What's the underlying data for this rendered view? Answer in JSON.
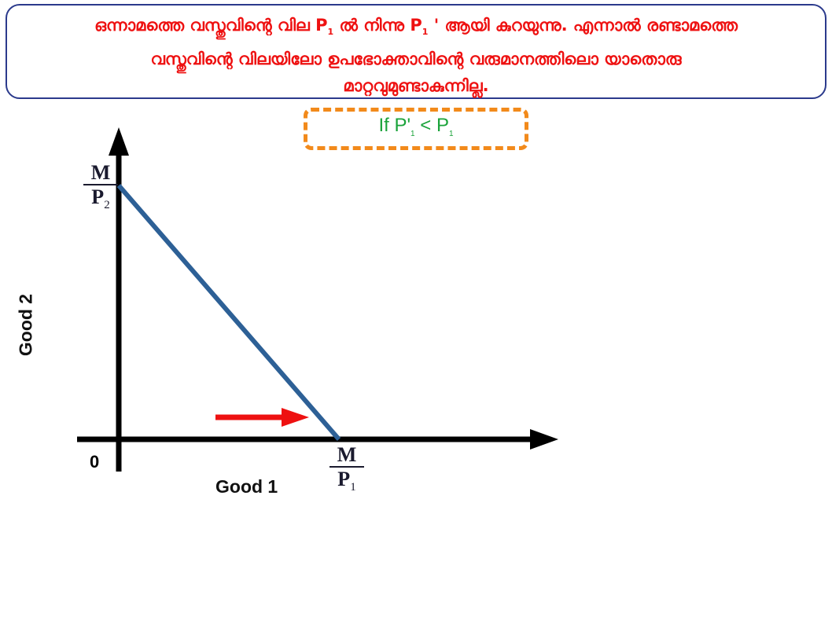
{
  "header": {
    "line1_a": "ഒന്നാമത്തെ വസ്തുവിന്റെ വില P",
    "line1_sub": "1",
    "line1_b": " ൽ നിന്നു P",
    "line1_sub2": "1",
    "line1_c": " ' ആയി കുറയുന്നു. എന്നാൽ രണ്ടാമത്തെ",
    "line2": "വസ്തുവിന്റെ വിലയിലോ ഉപഭോക്താവിന്റെ വരുമാനത്തിലൊ യാതൊരു",
    "line3": "മാറ്റവുമുണ്ടാകുന്നില്ല."
  },
  "condition": {
    "prefix": "If P'",
    "sub1": "1",
    "mid": " < P",
    "sub2": "1"
  },
  "diagram": {
    "y_axis_label": "Good 2",
    "x_axis_label": "Good 1",
    "origin_label": "0",
    "y_intercept": {
      "numerator": "M",
      "denominator": "P",
      "sub": "2"
    },
    "x_intercept": {
      "numerator": "M",
      "denominator": "P",
      "sub": "1"
    },
    "colors": {
      "budget_line": "#2d6096",
      "arrow": "#ee1111",
      "axes": "#000000",
      "header_text": "#ee1111",
      "condition_text": "#1aa33a",
      "condition_border": "#f28a1b"
    }
  }
}
